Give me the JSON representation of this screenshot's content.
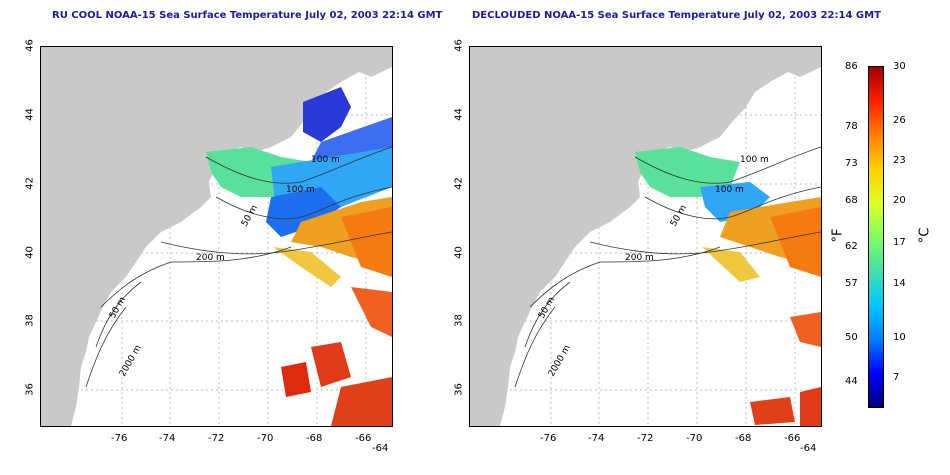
{
  "panels": [
    {
      "title": "RU COOL NOAA-15 Sea Surface Temperature July 02, 2003 22:14 GMT",
      "x_ticks": [
        "-76",
        "-74",
        "-72",
        "-70",
        "-68",
        "-66",
        "-64"
      ],
      "y_ticks": [
        "46",
        "44",
        "42",
        "40",
        "38",
        "36"
      ],
      "contours": [
        "100 m",
        "100 m",
        "50 m",
        "200 m",
        "50 m",
        "2000 m"
      ]
    },
    {
      "title": "DECLOUDED NOAA-15 Sea Surface Temperature July 02, 2003 22:14 GMT",
      "x_ticks": [
        "-76",
        "-74",
        "-72",
        "-70",
        "-68",
        "-66",
        "-64"
      ],
      "y_ticks": [
        "46",
        "44",
        "42",
        "40",
        "38",
        "36"
      ],
      "contours": [
        "100 m",
        "100 m",
        "50 m",
        "200 m",
        "50 m",
        "2000 m"
      ]
    }
  ],
  "colorbar": {
    "fahrenheit_labels": [
      "86",
      "78",
      "73",
      "68",
      "62",
      "57",
      "50",
      "44"
    ],
    "celsius_labels": [
      "30",
      "26",
      "23",
      "20",
      "17",
      "14",
      "10",
      "7"
    ],
    "unit_f": "°F",
    "unit_c": "°C",
    "colors": [
      "#000080",
      "#0000ff",
      "#0080ff",
      "#00c8ff",
      "#40e0b0",
      "#80ff60",
      "#e0ff20",
      "#ffd000",
      "#ff8000",
      "#ff2000",
      "#a00000"
    ]
  }
}
